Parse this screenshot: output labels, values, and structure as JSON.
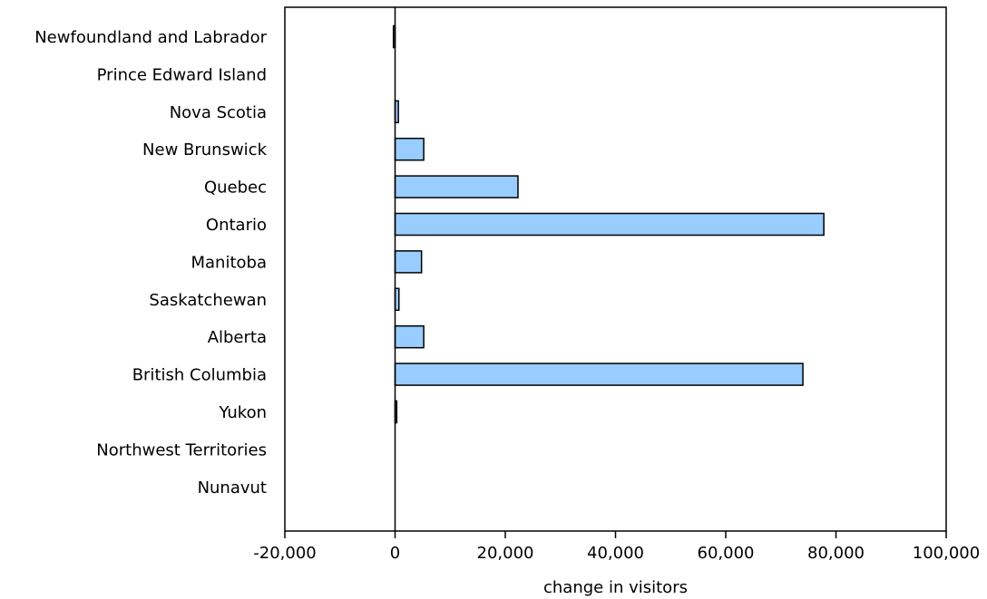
{
  "chart_data": {
    "type": "bar",
    "orientation": "horizontal",
    "categories": [
      "Newfoundland and Labrador",
      "Prince Edward Island",
      "Nova Scotia",
      "New Brunswick",
      "Quebec",
      "Ontario",
      "Manitoba",
      "Saskatchewan",
      "Alberta",
      "British Columbia",
      "Yukon",
      "Northwest Territories",
      "Nunavut"
    ],
    "values": [
      -300,
      0,
      600,
      5200,
      22300,
      77800,
      4800,
      700,
      5200,
      74000,
      300,
      0,
      0
    ],
    "xlabel": "change in visitors",
    "ylabel": "",
    "xlim": [
      -20000,
      100000
    ],
    "xticks": [
      -20000,
      0,
      20000,
      40000,
      60000,
      80000,
      100000
    ],
    "xtick_labels": [
      "-20,000",
      "0",
      "20,000",
      "40,000",
      "60,000",
      "80,000",
      "100,000"
    ],
    "bar_color": "#99ccff",
    "bar_edge_color": "#000000",
    "grid": false,
    "legend": "none"
  }
}
